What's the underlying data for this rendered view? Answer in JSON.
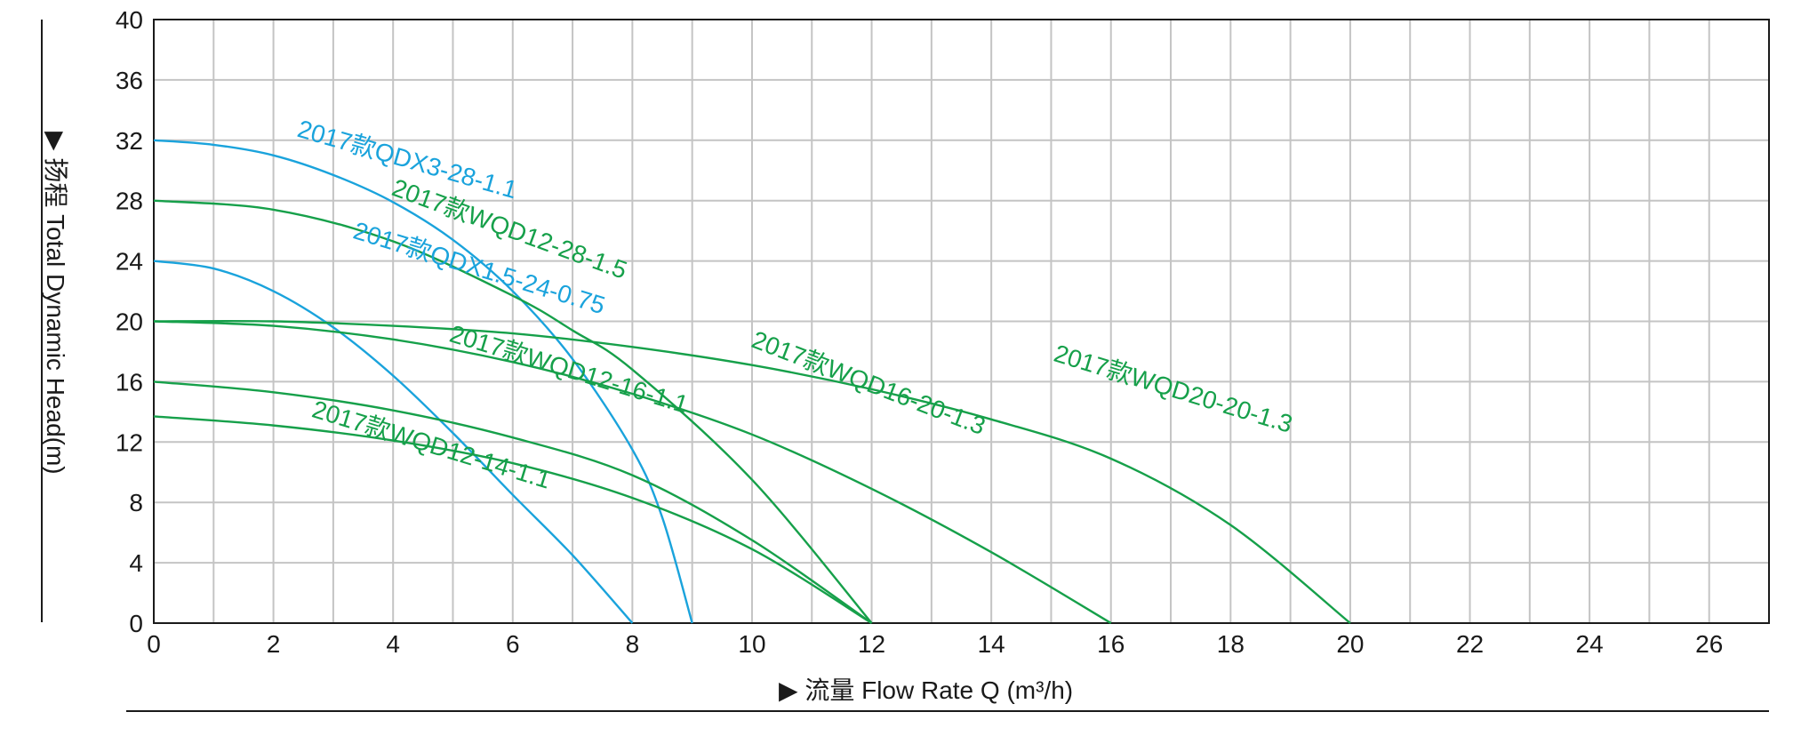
{
  "chart_data": {
    "type": "line",
    "xlabel": "▶ 流量 Flow Rate Q (m³/h)",
    "ylabel": "▶ 扬程 Total Dynamic Head(m)",
    "xlim": [
      0,
      27
    ],
    "ylim": [
      0,
      40
    ],
    "x_ticks": [
      0,
      2,
      4,
      6,
      8,
      10,
      12,
      14,
      16,
      18,
      20,
      22,
      24,
      26
    ],
    "y_ticks": [
      0,
      4,
      8,
      12,
      16,
      20,
      24,
      28,
      32,
      36,
      40
    ],
    "grid": true,
    "colors": {
      "blue": "#1aa3dc",
      "green": "#16a04a",
      "grid": "#c4c4c4",
      "axis": "#1a1a1a"
    },
    "series": [
      {
        "name": "2017款QDX3-28-1.1",
        "color": "#1aa3dc",
        "x": [
          0,
          1,
          2,
          3,
          4,
          5,
          6,
          7,
          8,
          8.5,
          9
        ],
        "y": [
          32,
          31.7,
          31,
          29.7,
          27.9,
          25.4,
          22,
          17.5,
          11.5,
          7,
          0
        ]
      },
      {
        "name": "2017款QDX1.5-24-0.75",
        "color": "#1aa3dc",
        "x": [
          0,
          1,
          2,
          3,
          4,
          5,
          6,
          7,
          8
        ],
        "y": [
          24,
          23.5,
          22,
          19.6,
          16.4,
          12.6,
          8.5,
          4.5,
          0
        ]
      },
      {
        "name": "2017款WQD12-28-1.5",
        "color": "#16a04a",
        "x": [
          0,
          2,
          4,
          6,
          7,
          8,
          10,
          12
        ],
        "y": [
          28,
          27.4,
          25.3,
          21.7,
          19.4,
          16.8,
          9.5,
          0
        ]
      },
      {
        "name": "2017款WQD16-20-1.3",
        "color": "#16a04a",
        "x": [
          0,
          2,
          4,
          6,
          8,
          10,
          12,
          14,
          16
        ],
        "y": [
          20,
          19.7,
          18.8,
          17.3,
          15.2,
          12.5,
          8.9,
          4.7,
          0
        ]
      },
      {
        "name": "2017款WQD20-20-1.3",
        "color": "#16a04a",
        "x": [
          0,
          2,
          4,
          6,
          8,
          10,
          12,
          14,
          16,
          18,
          20
        ],
        "y": [
          20,
          20,
          19.7,
          19.2,
          18.3,
          17.1,
          15.5,
          13.5,
          10.9,
          6.5,
          0
        ]
      },
      {
        "name": "2017款WQD12-16-1.1",
        "color": "#16a04a",
        "x": [
          0,
          2,
          4,
          6,
          8,
          10,
          12
        ],
        "y": [
          16,
          15.3,
          14.1,
          12.3,
          9.8,
          5.5,
          0
        ]
      },
      {
        "name": "2017款WQD12-14-1.1",
        "color": "#16a04a",
        "x": [
          0,
          2,
          4,
          6,
          8,
          10,
          12
        ],
        "y": [
          13.7,
          13.1,
          12.1,
          10.6,
          8.3,
          4.9,
          0
        ]
      }
    ],
    "labels": [
      {
        "text": "2017款QDX3-28-1.1",
        "series": 0,
        "x": 4.2,
        "y": 30.2,
        "angle": 16
      },
      {
        "text": "2017款WQD12-28-1.5",
        "series": 2,
        "x": 5.9,
        "y": 25.6,
        "angle": 20
      },
      {
        "text": "2017款QDX1.5-24-0.75",
        "series": 1,
        "x": 5.4,
        "y": 23.0,
        "angle": 17
      },
      {
        "text": "2017款WQD16-20-1.3",
        "series": 3,
        "x": 11.9,
        "y": 15.4,
        "angle": 21
      },
      {
        "text": "2017款WQD20-20-1.3",
        "series": 4,
        "x": 17.0,
        "y": 15.0,
        "angle": 17
      },
      {
        "text": "2017款WQD12-16-1.1",
        "series": 5,
        "x": 6.9,
        "y": 16.3,
        "angle": 17
      },
      {
        "text": "2017款WQD12-14-1.1",
        "series": 6,
        "x": 4.6,
        "y": 11.3,
        "angle": 17
      }
    ]
  }
}
